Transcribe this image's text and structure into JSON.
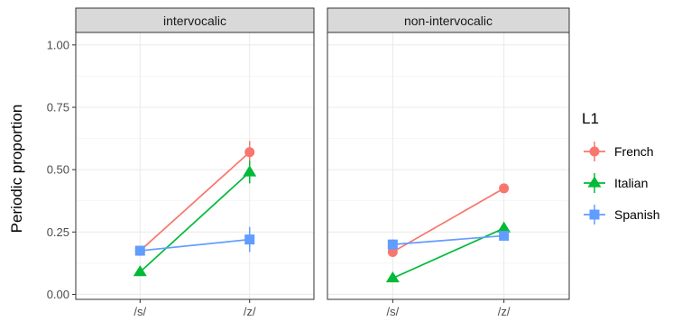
{
  "chart_data": {
    "type": "line",
    "ylabel": "Periodic proportion",
    "xlabel": "",
    "categories": [
      "/s/",
      "/z/"
    ],
    "y_ticks": [
      "0.00",
      "0.25",
      "0.50",
      "0.75",
      "1.00"
    ],
    "ylim": [
      -0.02,
      1.05
    ],
    "grid": true,
    "legend": {
      "title": "L1",
      "placement": "right",
      "entries": [
        {
          "name": "French",
          "color": "#F8766D",
          "shape": "circle"
        },
        {
          "name": "Italian",
          "color": "#00BA38",
          "shape": "triangle"
        },
        {
          "name": "Spanish",
          "color": "#619CFF",
          "shape": "square"
        }
      ]
    },
    "panels": [
      {
        "label": "intervocalic",
        "series": [
          {
            "name": "French",
            "values": [
              0.175,
              0.57
            ],
            "errors": [
              0.015,
              0.045
            ]
          },
          {
            "name": "Italian",
            "values": [
              0.09,
              0.49
            ],
            "errors": [
              0.01,
              0.045
            ]
          },
          {
            "name": "Spanish",
            "values": [
              0.175,
              0.22
            ],
            "errors": [
              0.02,
              0.05
            ]
          }
        ]
      },
      {
        "label": "non-intervocalic",
        "series": [
          {
            "name": "French",
            "values": [
              0.17,
              0.425
            ],
            "errors": [
              0.015,
              0.01
            ]
          },
          {
            "name": "Italian",
            "values": [
              0.065,
              0.265
            ],
            "errors": [
              0.01,
              0.02
            ]
          },
          {
            "name": "Spanish",
            "values": [
              0.2,
              0.235
            ],
            "errors": [
              0.02,
              0.02
            ]
          }
        ]
      }
    ]
  }
}
